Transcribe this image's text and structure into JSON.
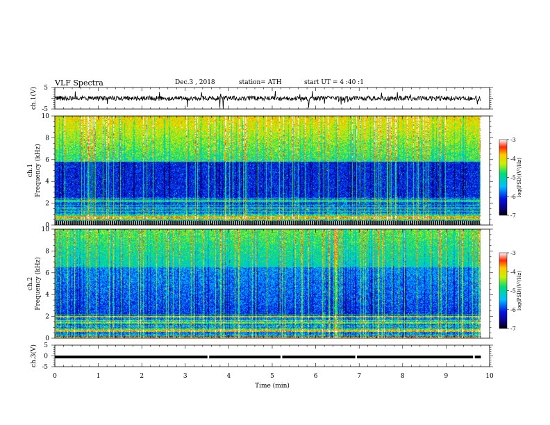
{
  "header": {
    "title": "VLF  Spectra",
    "date": "Dec.3  , 2018",
    "station": "station= ATH",
    "start_ut": "start  UT  =   4  :40 :1"
  },
  "chart_data": [
    {
      "id": "ch1-waveform",
      "type": "line",
      "ylabel": "ch.1(V)",
      "ylim": [
        -5,
        5
      ],
      "yticks": [
        "5",
        "-5"
      ],
      "xlim": [
        0,
        10
      ],
      "data_span_min": [
        0,
        9.8
      ],
      "baseline": 0,
      "color": "#000000"
    },
    {
      "id": "ch1-spectrogram",
      "type": "heatmap",
      "ylabel": "ch.1",
      "ylabel2": "Frequency  (kHz)",
      "ylim": [
        0,
        10
      ],
      "yticks": [
        "0",
        "2",
        "4",
        "6",
        "8",
        "10"
      ],
      "xlim": [
        0,
        10
      ],
      "data_span_min": [
        0,
        9.8
      ],
      "colorbar": {
        "label": "log(PSD)(V²/Hz)",
        "range": [
          -7,
          -3
        ],
        "ticks": [
          "-3",
          "-4",
          "-5",
          "-6",
          "-7"
        ]
      }
    },
    {
      "id": "ch2-spectrogram",
      "type": "heatmap",
      "ylabel": "ch.2",
      "ylabel2": "Frequency  (kHz)",
      "ylim": [
        0,
        10
      ],
      "yticks": [
        "0",
        "2",
        "4",
        "6",
        "8",
        "10"
      ],
      "xlim": [
        0,
        10
      ],
      "data_span_min": [
        0,
        9.8
      ],
      "colorbar": {
        "label": "log(PSD)(V²/Hz)",
        "range": [
          -7,
          -3
        ],
        "ticks": [
          "-3",
          "-4",
          "-5",
          "-6",
          "-7"
        ]
      }
    },
    {
      "id": "ch3-waveform",
      "type": "line",
      "ylabel": "ch.3(V)",
      "ylim": [
        -5,
        5
      ],
      "yticks": [
        "5",
        "0",
        "-5"
      ],
      "xlim": [
        0,
        10
      ],
      "data_span_min": [
        0,
        9.8
      ],
      "baseline": -0.5,
      "gaps_min": [
        3.52,
        5.2,
        6.92,
        9.63
      ],
      "color": "#000000"
    }
  ],
  "xaxis": {
    "label": "Time  (min)",
    "ticks": [
      "0",
      "1",
      "2",
      "3",
      "4",
      "5",
      "6",
      "7",
      "8",
      "9",
      "10"
    ]
  }
}
